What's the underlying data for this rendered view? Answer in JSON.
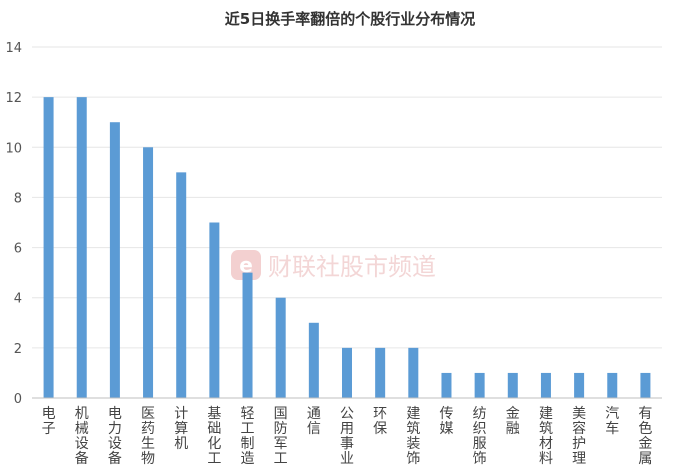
{
  "chart_data": {
    "type": "bar",
    "title": "近5日换手率翻倍的个股行业分布情况",
    "categories": [
      "电子",
      "机械设备",
      "电力设备",
      "医药生物",
      "计算机",
      "基础化工",
      "轻工制造",
      "国防军工",
      "通信",
      "公用事业",
      "环保",
      "建筑装饰",
      "传媒",
      "纺织服饰",
      "金融",
      "建筑材料",
      "美容护理",
      "汽车",
      "有色金属"
    ],
    "values": [
      12,
      12,
      11,
      10,
      9,
      7,
      5,
      4,
      3,
      2,
      2,
      2,
      1,
      1,
      1,
      1,
      1,
      1,
      1
    ],
    "ylim": [
      0,
      14
    ],
    "yticks": [
      0,
      2,
      4,
      6,
      8,
      10,
      12,
      14
    ],
    "xlabel": "",
    "ylabel": "",
    "grid": true,
    "bar_color": "#5b9bd5"
  },
  "watermark": {
    "text": "财联社股市频道",
    "logo_letter": "e",
    "color": "#e8b3b3"
  }
}
